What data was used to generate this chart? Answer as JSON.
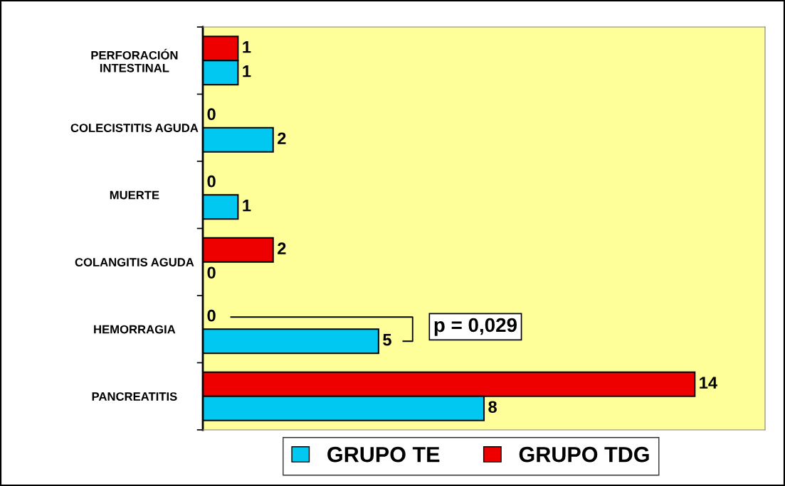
{
  "chart_data": {
    "type": "bar",
    "orientation": "horizontal",
    "categories": [
      "PERFORACIÓN\nINTESTINAL",
      "COLECISTITIS AGUDA",
      "MUERTE",
      "COLANGITIS AGUDA",
      "HEMORRAGIA",
      "PANCREATITIS"
    ],
    "series": [
      {
        "name": "GRUPO TDG",
        "color": "#ee0000",
        "values": [
          1,
          0,
          0,
          2,
          0,
          14
        ]
      },
      {
        "name": "GRUPO TE",
        "color": "#00c8f0",
        "values": [
          1,
          2,
          1,
          0,
          5,
          8
        ]
      }
    ],
    "xlim": [
      0,
      16
    ],
    "data_labels": true,
    "legend": "bottom",
    "grid": false,
    "tick_labels": "y",
    "annotations": [
      "p = 0,029"
    ]
  }
}
